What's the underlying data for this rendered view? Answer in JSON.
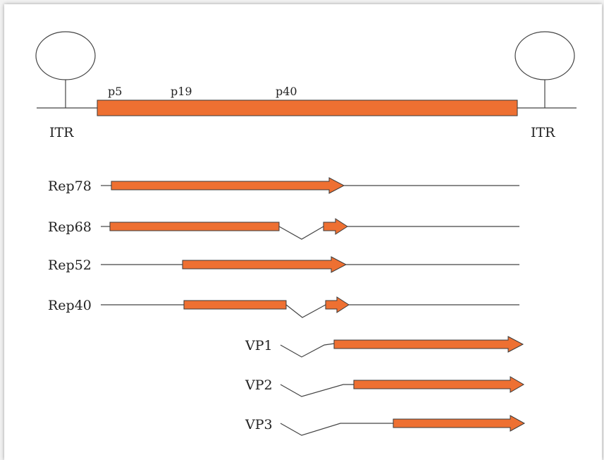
{
  "itr_left": "ITR",
  "itr_right": "ITR",
  "promoters": {
    "p5": "p5",
    "p19": "p19",
    "p40": "p40"
  },
  "transcripts": {
    "rep78": "Rep78",
    "rep68": "Rep68",
    "rep52": "Rep52",
    "rep40": "Rep40",
    "vp1": "VP1",
    "vp2": "VP2",
    "vp3": "VP3"
  },
  "colors": {
    "orf": "#ee7032",
    "line": "#444444"
  }
}
